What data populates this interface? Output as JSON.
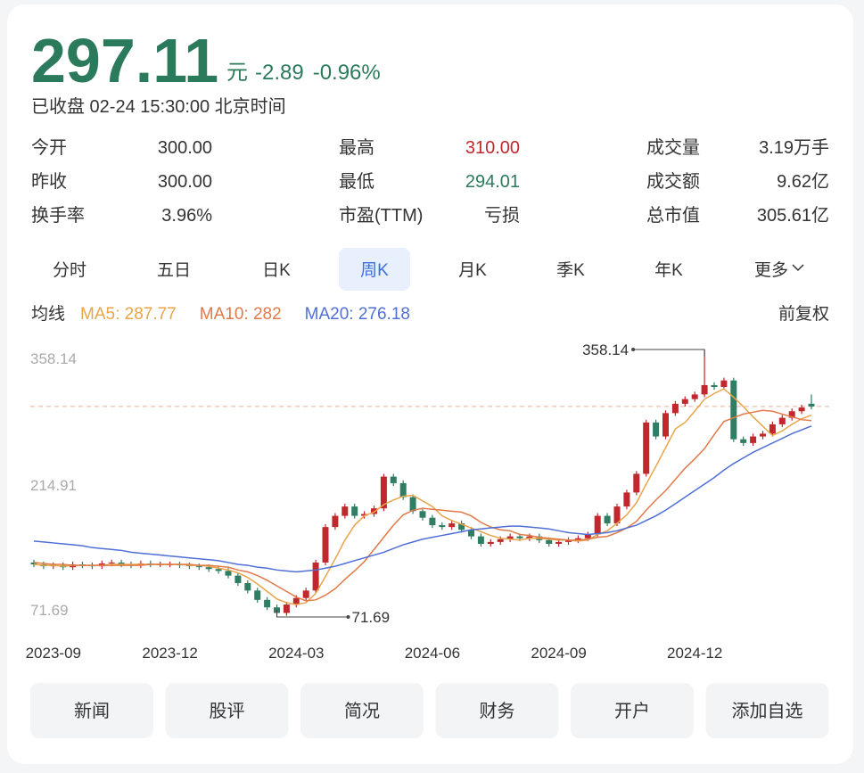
{
  "header": {
    "price": "297.11",
    "unit": "元",
    "change": "-2.89",
    "change_pct": "-0.96%",
    "status": "已收盘 02-24 15:30:00 北京时间"
  },
  "stats": [
    [
      {
        "label": "今开",
        "value": "300.00"
      },
      {
        "label": "最高",
        "value": "310.00",
        "color": "#c0282d"
      },
      {
        "label": "成交量",
        "value": "3.19万手"
      }
    ],
    [
      {
        "label": "昨收",
        "value": "300.00"
      },
      {
        "label": "最低",
        "value": "294.01",
        "color": "#2b7a5b"
      },
      {
        "label": "成交额",
        "value": "9.62亿"
      }
    ],
    [
      {
        "label": "换手率",
        "value": "3.96%"
      },
      {
        "label": "市盈(TTM)",
        "value": "亏损"
      },
      {
        "label": "总市值",
        "value": "305.61亿"
      }
    ]
  ],
  "tabs": {
    "items": [
      "分时",
      "五日",
      "日K",
      "周K",
      "月K",
      "季K",
      "年K",
      "更多"
    ],
    "selected": 3
  },
  "chart_header": {
    "label": "均线",
    "adjust": "前复权"
  },
  "chart_data": {
    "type": "candlestick",
    "categories": [
      null,
      null,
      "2023-09",
      null,
      null,
      null,
      null,
      null,
      null,
      null,
      null,
      null,
      null,
      null,
      "2023-12",
      null,
      null,
      null,
      null,
      null,
      null,
      null,
      null,
      null,
      null,
      null,
      null,
      "2024-03",
      null,
      null,
      null,
      null,
      null,
      null,
      null,
      null,
      null,
      null,
      null,
      null,
      null,
      "2024-06",
      null,
      null,
      null,
      null,
      null,
      null,
      null,
      null,
      null,
      null,
      null,
      null,
      "2024-09",
      null,
      null,
      null,
      null,
      null,
      null,
      null,
      null,
      null,
      null,
      null,
      null,
      null,
      "2024-12",
      null,
      null,
      null,
      null,
      null,
      null,
      null,
      null,
      null,
      null,
      null,
      null
    ],
    "open": [
      130,
      128,
      126,
      127,
      125,
      128,
      127,
      126,
      129,
      130,
      128,
      127,
      129,
      128,
      128,
      128,
      127,
      126,
      125,
      123,
      121,
      116,
      108,
      100,
      90,
      82,
      76,
      85,
      92,
      100,
      130,
      168,
      180,
      190,
      180,
      182,
      188,
      222,
      215,
      200,
      185,
      178,
      170,
      168,
      172,
      165,
      158,
      150,
      152,
      155,
      158,
      156,
      158,
      154,
      150,
      152,
      154,
      156,
      160,
      180,
      172,
      190,
      205,
      225,
      280,
      265,
      290,
      300,
      305,
      310,
      320,
      318,
      325,
      262,
      258,
      265,
      268,
      278,
      285,
      292,
      300
    ],
    "high": [
      133,
      131,
      130,
      130,
      131,
      131,
      130,
      132,
      133,
      133,
      131,
      132,
      132,
      131,
      131,
      131,
      130,
      129,
      128,
      126,
      124,
      119,
      111,
      103,
      93,
      85,
      88,
      95,
      103,
      133,
      171,
      183,
      193,
      193,
      185,
      191,
      225,
      225,
      218,
      203,
      188,
      181,
      173,
      175,
      175,
      168,
      161,
      155,
      158,
      161,
      161,
      161,
      161,
      157,
      155,
      157,
      159,
      163,
      183,
      183,
      193,
      208,
      228,
      283,
      283,
      293,
      303,
      308,
      313,
      358.14,
      323,
      328,
      328,
      265,
      268,
      271,
      281,
      288,
      295,
      299,
      310
    ],
    "low": [
      125,
      123,
      123,
      122,
      122,
      124,
      123,
      123,
      126,
      125,
      124,
      124,
      125,
      125,
      125,
      124,
      123,
      122,
      120,
      118,
      113,
      105,
      97,
      87,
      79,
      71.69,
      73,
      82,
      89,
      97,
      127,
      165,
      177,
      177,
      177,
      179,
      185,
      212,
      197,
      182,
      175,
      167,
      165,
      165,
      162,
      155,
      147,
      147,
      149,
      152,
      153,
      153,
      151,
      147,
      147,
      149,
      151,
      153,
      157,
      169,
      169,
      187,
      202,
      222,
      262,
      262,
      287,
      297,
      302,
      307,
      315,
      315,
      259,
      255,
      255,
      262,
      265,
      275,
      282,
      289,
      294.01
    ],
    "close": [
      128,
      126,
      127,
      125,
      128,
      127,
      126,
      129,
      130,
      128,
      127,
      129,
      128,
      128,
      128,
      127,
      126,
      125,
      123,
      121,
      116,
      108,
      100,
      90,
      82,
      76,
      85,
      92,
      100,
      130,
      168,
      180,
      190,
      180,
      182,
      188,
      222,
      215,
      200,
      185,
      178,
      170,
      168,
      172,
      165,
      158,
      150,
      152,
      155,
      158,
      156,
      158,
      154,
      150,
      152,
      154,
      156,
      160,
      180,
      172,
      190,
      205,
      225,
      280,
      265,
      290,
      300,
      305,
      310,
      320,
      318,
      325,
      262,
      258,
      265,
      268,
      278,
      285,
      292,
      296,
      297.11
    ],
    "series": [
      {
        "name": "MA5: 287.77",
        "color": "#e8a54a",
        "values": [
          128,
          127,
          127,
          126,
          127,
          127,
          127,
          127,
          128,
          128,
          128,
          128,
          128,
          128,
          128,
          128,
          127,
          127,
          126,
          124,
          122,
          119,
          114,
          107,
          99,
          91,
          87,
          85,
          87,
          97,
          115,
          134,
          154,
          170,
          180,
          184,
          192,
          197,
          201,
          202,
          196,
          190,
          180,
          175,
          171,
          167,
          163,
          159,
          156,
          155,
          154,
          156,
          156,
          155,
          154,
          154,
          153,
          154,
          160,
          164,
          172,
          181,
          194,
          214,
          233,
          253,
          273,
          280,
          292,
          305,
          311,
          316,
          307,
          297,
          286,
          276,
          266,
          271,
          278,
          284,
          287.77
        ]
      },
      {
        "name": "MA10: 282",
        "color": "#e07a48",
        "values": [
          130,
          129,
          128,
          128,
          127,
          127,
          127,
          127,
          127,
          127,
          127,
          127,
          128,
          128,
          128,
          128,
          128,
          127,
          127,
          126,
          125,
          122,
          120,
          116,
          111,
          105,
          99,
          93,
          89,
          90,
          95,
          102,
          112,
          121,
          131,
          144,
          157,
          170,
          181,
          186,
          188,
          187,
          186,
          185,
          184,
          180,
          173,
          168,
          165,
          164,
          160,
          159,
          157,
          156,
          155,
          154,
          154,
          155,
          157,
          158,
          162,
          167,
          174,
          186,
          197,
          207,
          219,
          231,
          241,
          252,
          267,
          281,
          285,
          289,
          291,
          293,
          292,
          289,
          286,
          283,
          282
        ]
      },
      {
        "name": "MA20: 276.18",
        "color": "#4f6fd6",
        "values": [
          153,
          152,
          151,
          150,
          149,
          148,
          146,
          145,
          144,
          143,
          141,
          140,
          139,
          138,
          137,
          136,
          135,
          134,
          133,
          132,
          130,
          128,
          127,
          125,
          124,
          122,
          121,
          120,
          121,
          122,
          124,
          126,
          129,
          132,
          135,
          138,
          141,
          145,
          149,
          152,
          155,
          157,
          159,
          161,
          163,
          165,
          166,
          167,
          168,
          169,
          169,
          168,
          167,
          166,
          164,
          162,
          161,
          160,
          161,
          162,
          164,
          167,
          170,
          175,
          180,
          186,
          193,
          200,
          207,
          214,
          221,
          229,
          236,
          242,
          248,
          253,
          258,
          263,
          268,
          272,
          276.18
        ]
      }
    ],
    "ylim": [
      71.69,
      358.14
    ],
    "yticks": [
      71.69,
      214.91,
      358.14
    ],
    "price_line": 297.11,
    "up_color": "#c0282d",
    "down_color": "#2f7d63"
  },
  "buttons": [
    "新闻",
    "股评",
    "简况",
    "财务",
    "开户",
    "添加自选"
  ]
}
